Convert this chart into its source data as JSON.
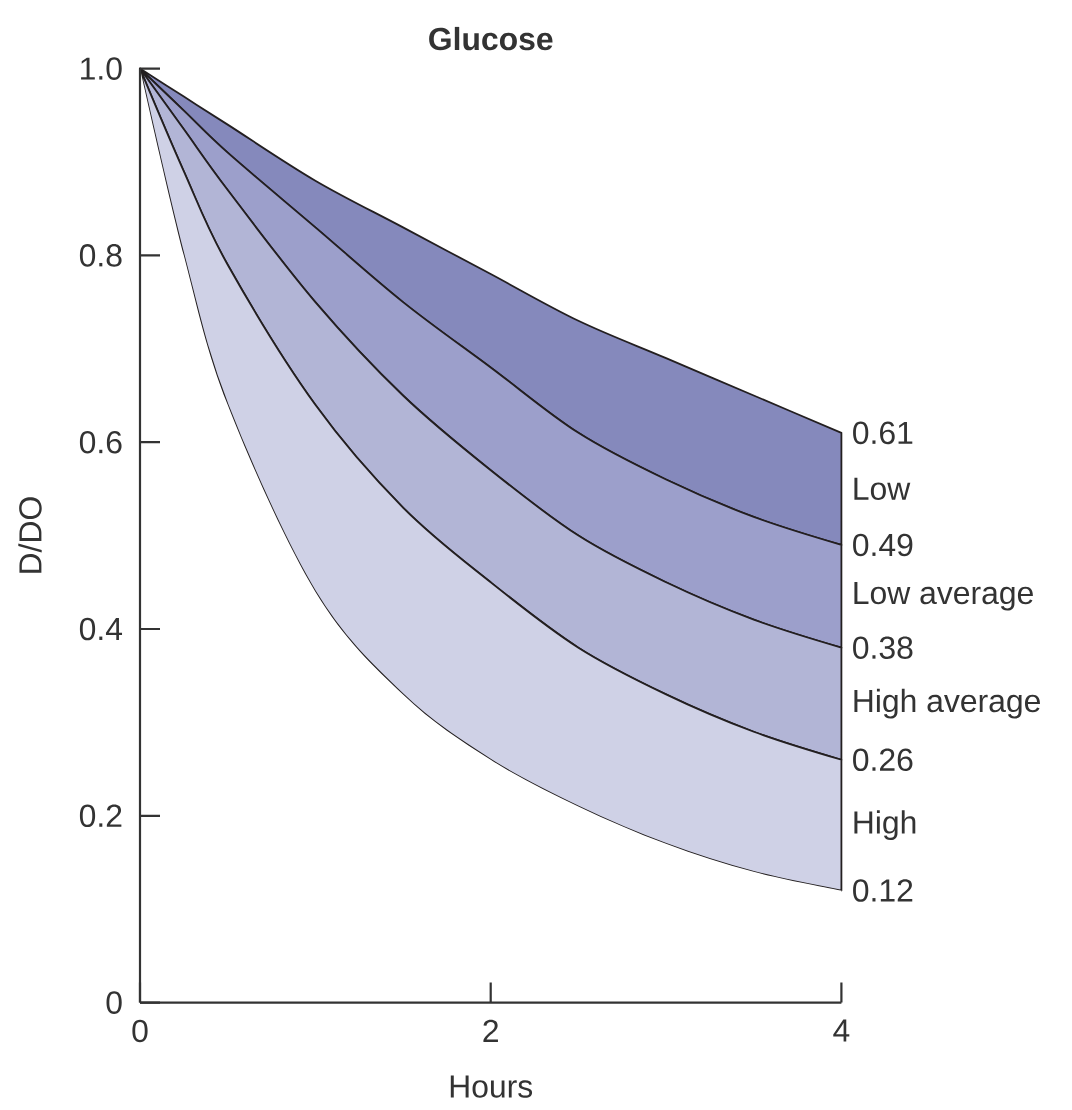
{
  "chart_data": {
    "type": "area",
    "stacked": true,
    "title": "Glucose",
    "xlabel": "Hours",
    "ylabel": "D/DO",
    "x": [
      0,
      0.25,
      0.5,
      1,
      1.5,
      2,
      2.5,
      3,
      3.5,
      4
    ],
    "xlim": [
      0,
      4
    ],
    "ylim": [
      0,
      1
    ],
    "xticks": [
      0,
      2,
      4
    ],
    "yticks": [
      0,
      0.2,
      0.4,
      0.6,
      0.8,
      {
        "value": 1,
        "label": "1.0"
      }
    ],
    "y2lim": [
      0,
      1
    ],
    "y2ticks": [
      0.12,
      0.26,
      0.38,
      0.49,
      0.61
    ],
    "series": [
      {
        "color": "#ffffff",
        "values": [
          1,
          0.8,
          0.64,
          0.44,
          0.33,
          0.26,
          0.21,
          0.17,
          0.14,
          0.12
        ]
      },
      {
        "name": "High",
        "color": "#cfd1e6",
        "values": [
          0,
          0.09,
          0.15,
          0.2,
          0.2,
          0.19,
          0.17,
          0.16,
          0.15,
          0.14
        ]
      },
      {
        "name": "High average",
        "color": "#b2b5d6",
        "values": [
          0,
          0.045,
          0.08,
          0.11,
          0.12,
          0.12,
          0.12,
          0.12,
          0.12,
          0.12
        ]
      },
      {
        "name": "Low average",
        "color": "#9c9fcb",
        "values": [
          0,
          0.02,
          0.04,
          0.08,
          0.1,
          0.11,
          0.11,
          0.11,
          0.11,
          0.11
        ]
      },
      {
        "name": "Low",
        "color": "#8589bc",
        "values": [
          0,
          0.015,
          0.03,
          0.05,
          0.08,
          0.1,
          0.12,
          0.13,
          0.13,
          0.12
        ]
      }
    ]
  }
}
